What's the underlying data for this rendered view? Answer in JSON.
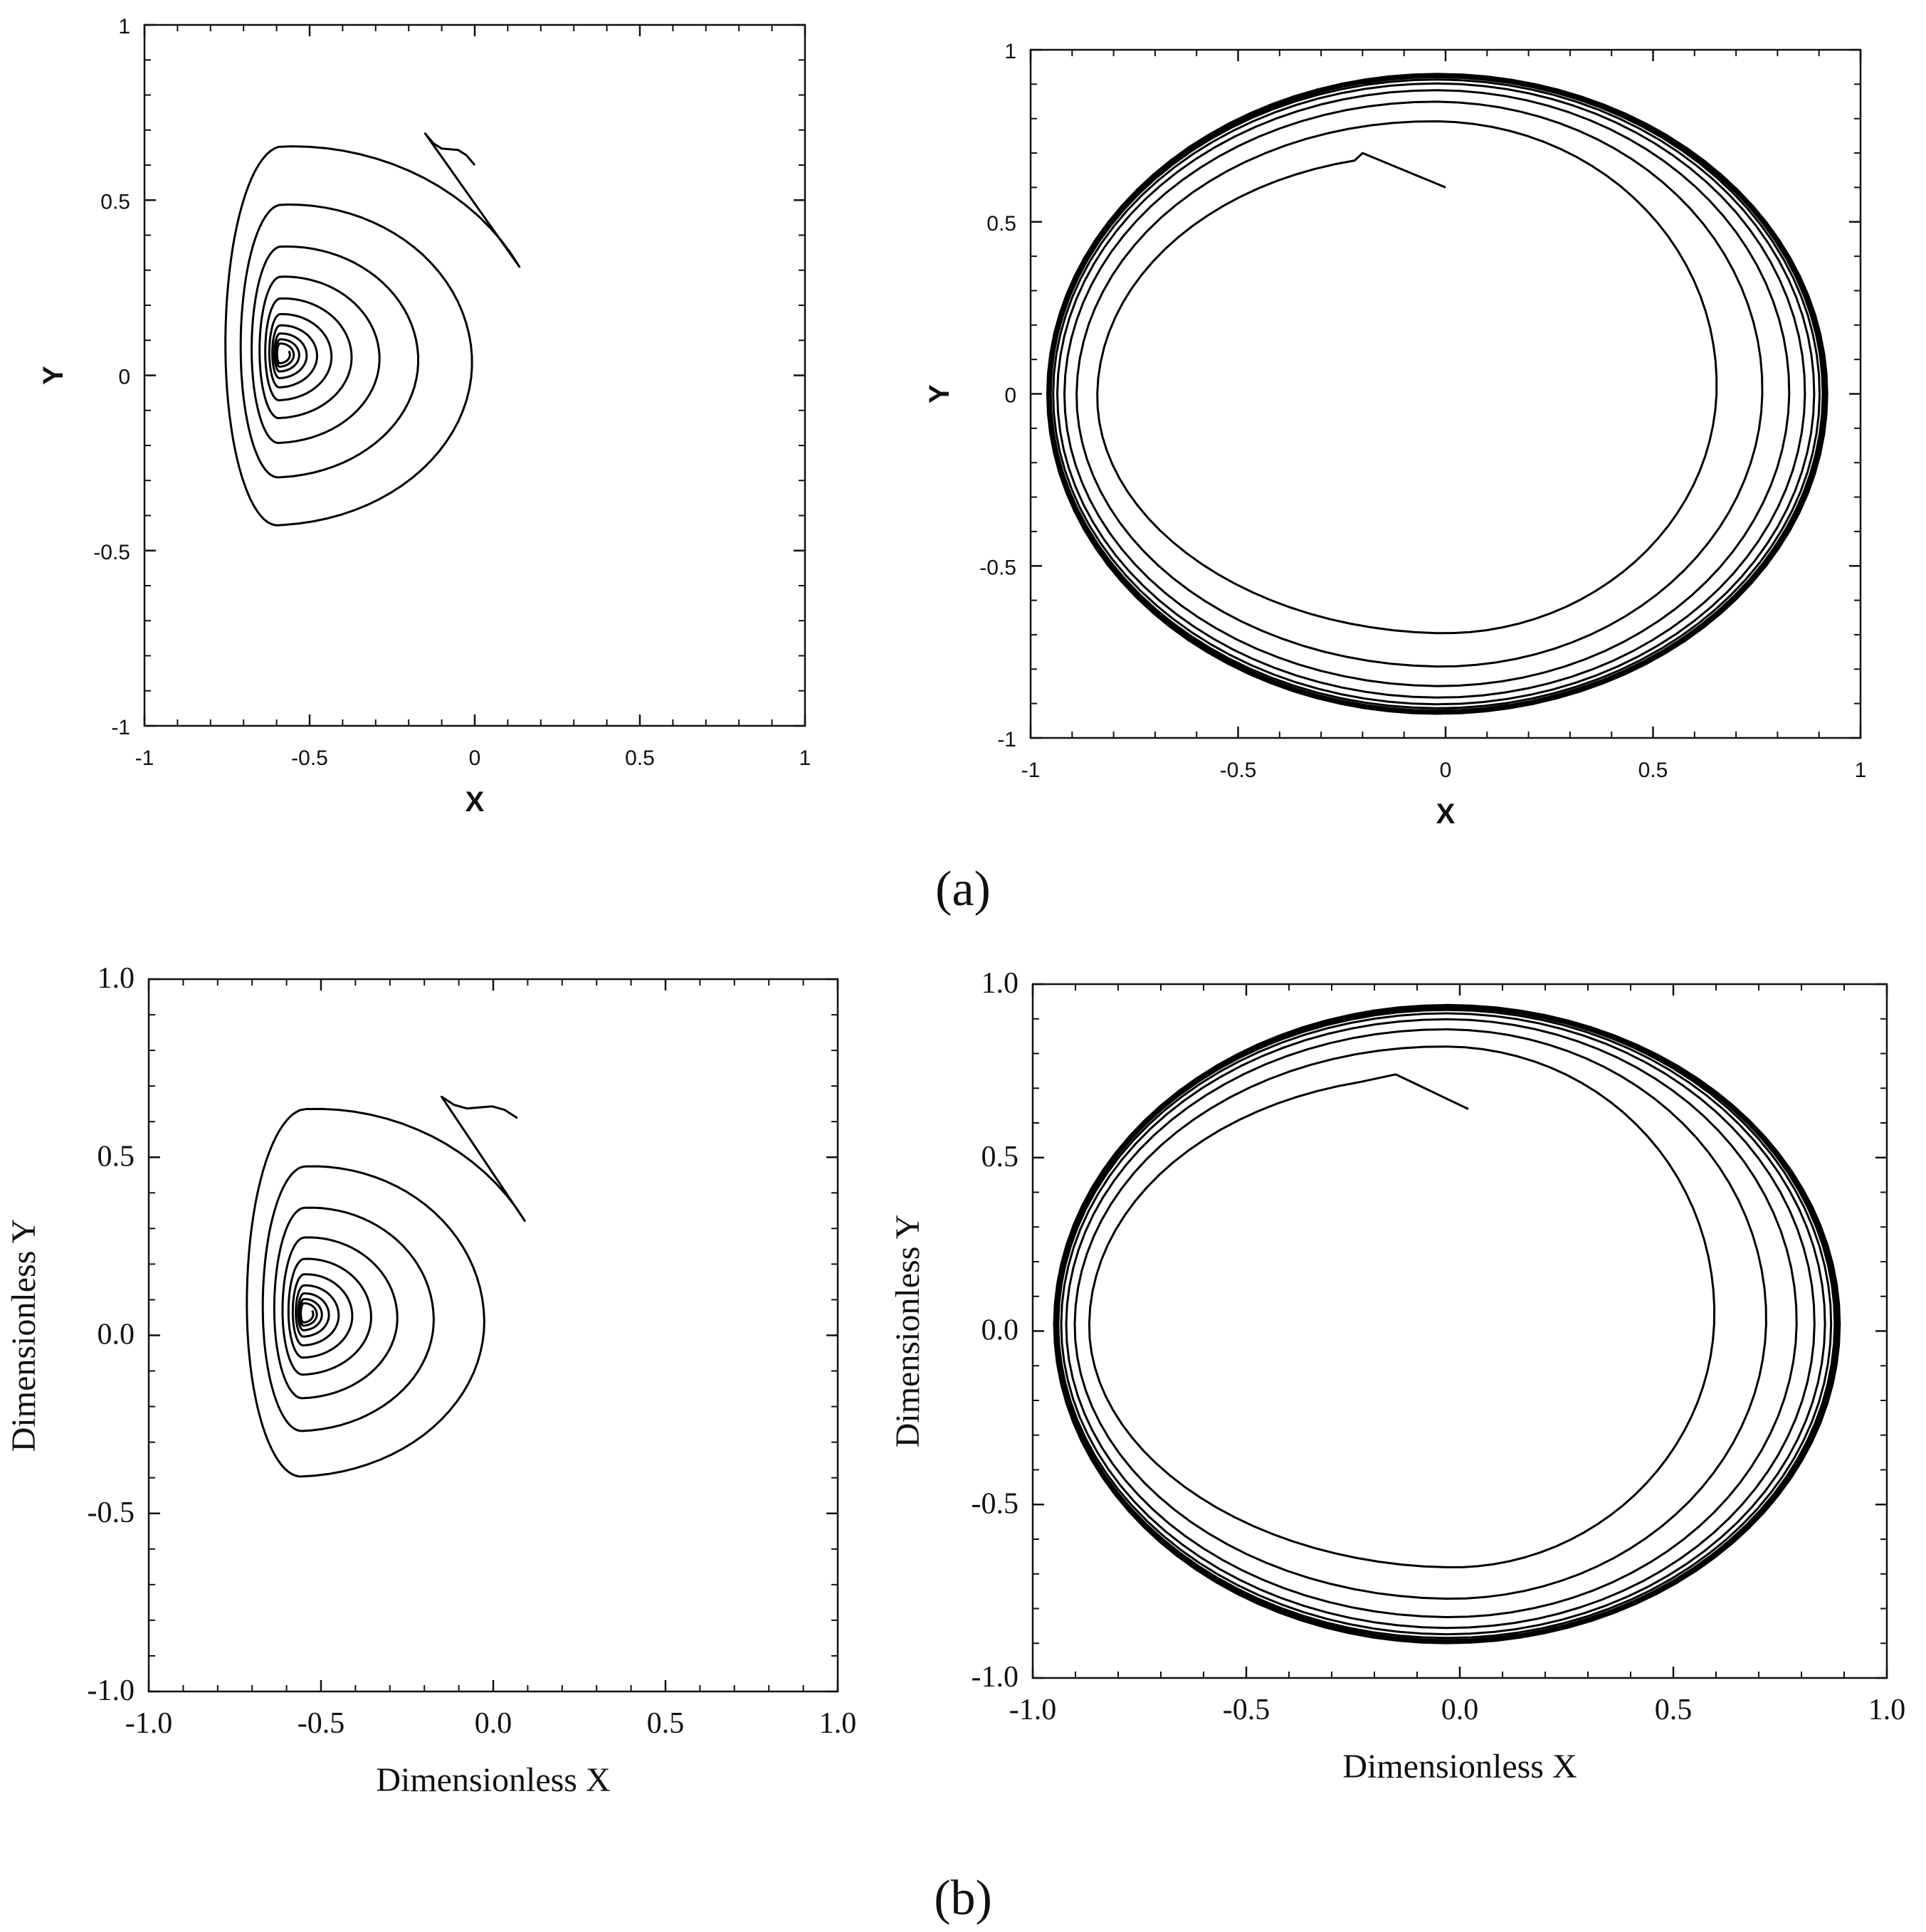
{
  "figure": {
    "panel_captions": [
      "(a)",
      "(b)"
    ]
  },
  "chart_data": [
    {
      "type": "line",
      "panel": "a-left",
      "style": "a",
      "xlabel": "X",
      "ylabel": "Y",
      "xlim": [
        -1,
        1
      ],
      "ylim": [
        -1,
        1
      ],
      "xticks": [
        "-1",
        "-0.5",
        "0",
        "0.5",
        "1"
      ],
      "yticks": [
        "-1",
        "-0.5",
        "0",
        "0.5",
        "1"
      ],
      "series": [
        {
          "kind": "spiral-in",
          "start": [
            0.0,
            0.6
          ],
          "top_start": [
            -0.15,
            0.69
          ],
          "center": [
            -0.59,
            0.06
          ],
          "extent_first_turn": {
            "right": 0.2,
            "left": -0.78,
            "top": 0.69,
            "bottom": -0.55
          },
          "turns": 10,
          "color": "#000000"
        }
      ]
    },
    {
      "type": "line",
      "panel": "a-right",
      "style": "a",
      "xlabel": "X",
      "ylabel": "Y",
      "xlim": [
        -1,
        1
      ],
      "ylim": [
        -1,
        1
      ],
      "xticks": [
        "-1",
        "-0.5",
        "0",
        "0.5",
        "1"
      ],
      "yticks": [
        "-1",
        "-0.5",
        "0",
        "0.5",
        "1"
      ],
      "series": [
        {
          "kind": "spiral-out",
          "start": [
            0.0,
            0.6
          ],
          "top_start": [
            -0.2,
            0.7
          ],
          "limit_cycle": {
            "center": [
              -0.02,
              0.0
            ],
            "rx": 0.94,
            "ry": 0.93
          },
          "first_loop": {
            "right": 0.53,
            "bottom": -0.63
          },
          "turns": 14,
          "color": "#000000"
        }
      ]
    },
    {
      "type": "line",
      "panel": "b-left",
      "style": "b",
      "xlabel": "Dimensionless X",
      "ylabel": "Dimensionless Y",
      "xlim": [
        -1.0,
        1.0
      ],
      "ylim": [
        -1.0,
        1.0
      ],
      "xticks": [
        "-1.0",
        "-0.5",
        "0.0",
        "0.5",
        "1.0"
      ],
      "yticks": [
        "-1.0",
        "-0.5",
        "0.0",
        "0.5",
        "1.0"
      ],
      "series": [
        {
          "kind": "spiral-in",
          "start": [
            0.07,
            0.61
          ],
          "top_start": [
            -0.15,
            0.67
          ],
          "center": [
            -0.55,
            0.06
          ],
          "extent_first_turn": {
            "right": 0.16,
            "left": -0.74,
            "top": 0.67,
            "bottom": -0.51
          },
          "turns": 10,
          "color": "#000000"
        }
      ]
    },
    {
      "type": "line",
      "panel": "b-right",
      "style": "b",
      "xlabel": "Dimensionless X",
      "ylabel": "Dimensionless Y",
      "xlim": [
        -1.0,
        1.0
      ],
      "ylim": [
        -1.0,
        1.0
      ],
      "xticks": [
        "-1.0",
        "-0.5",
        "0.0",
        "0.5",
        "1.0"
      ],
      "yticks": [
        "-1.0",
        "-0.5",
        "0.0",
        "0.5",
        "1.0"
      ],
      "series": [
        {
          "kind": "spiral-out",
          "start": [
            0.02,
            0.64
          ],
          "top_start": [
            -0.15,
            0.74
          ],
          "limit_cycle": {
            "center": [
              -0.03,
              0.02
            ],
            "rx": 0.92,
            "ry": 0.92
          },
          "first_loop": {
            "right": 0.46,
            "bottom": -0.62
          },
          "turns": 14,
          "color": "#000000"
        }
      ]
    }
  ]
}
